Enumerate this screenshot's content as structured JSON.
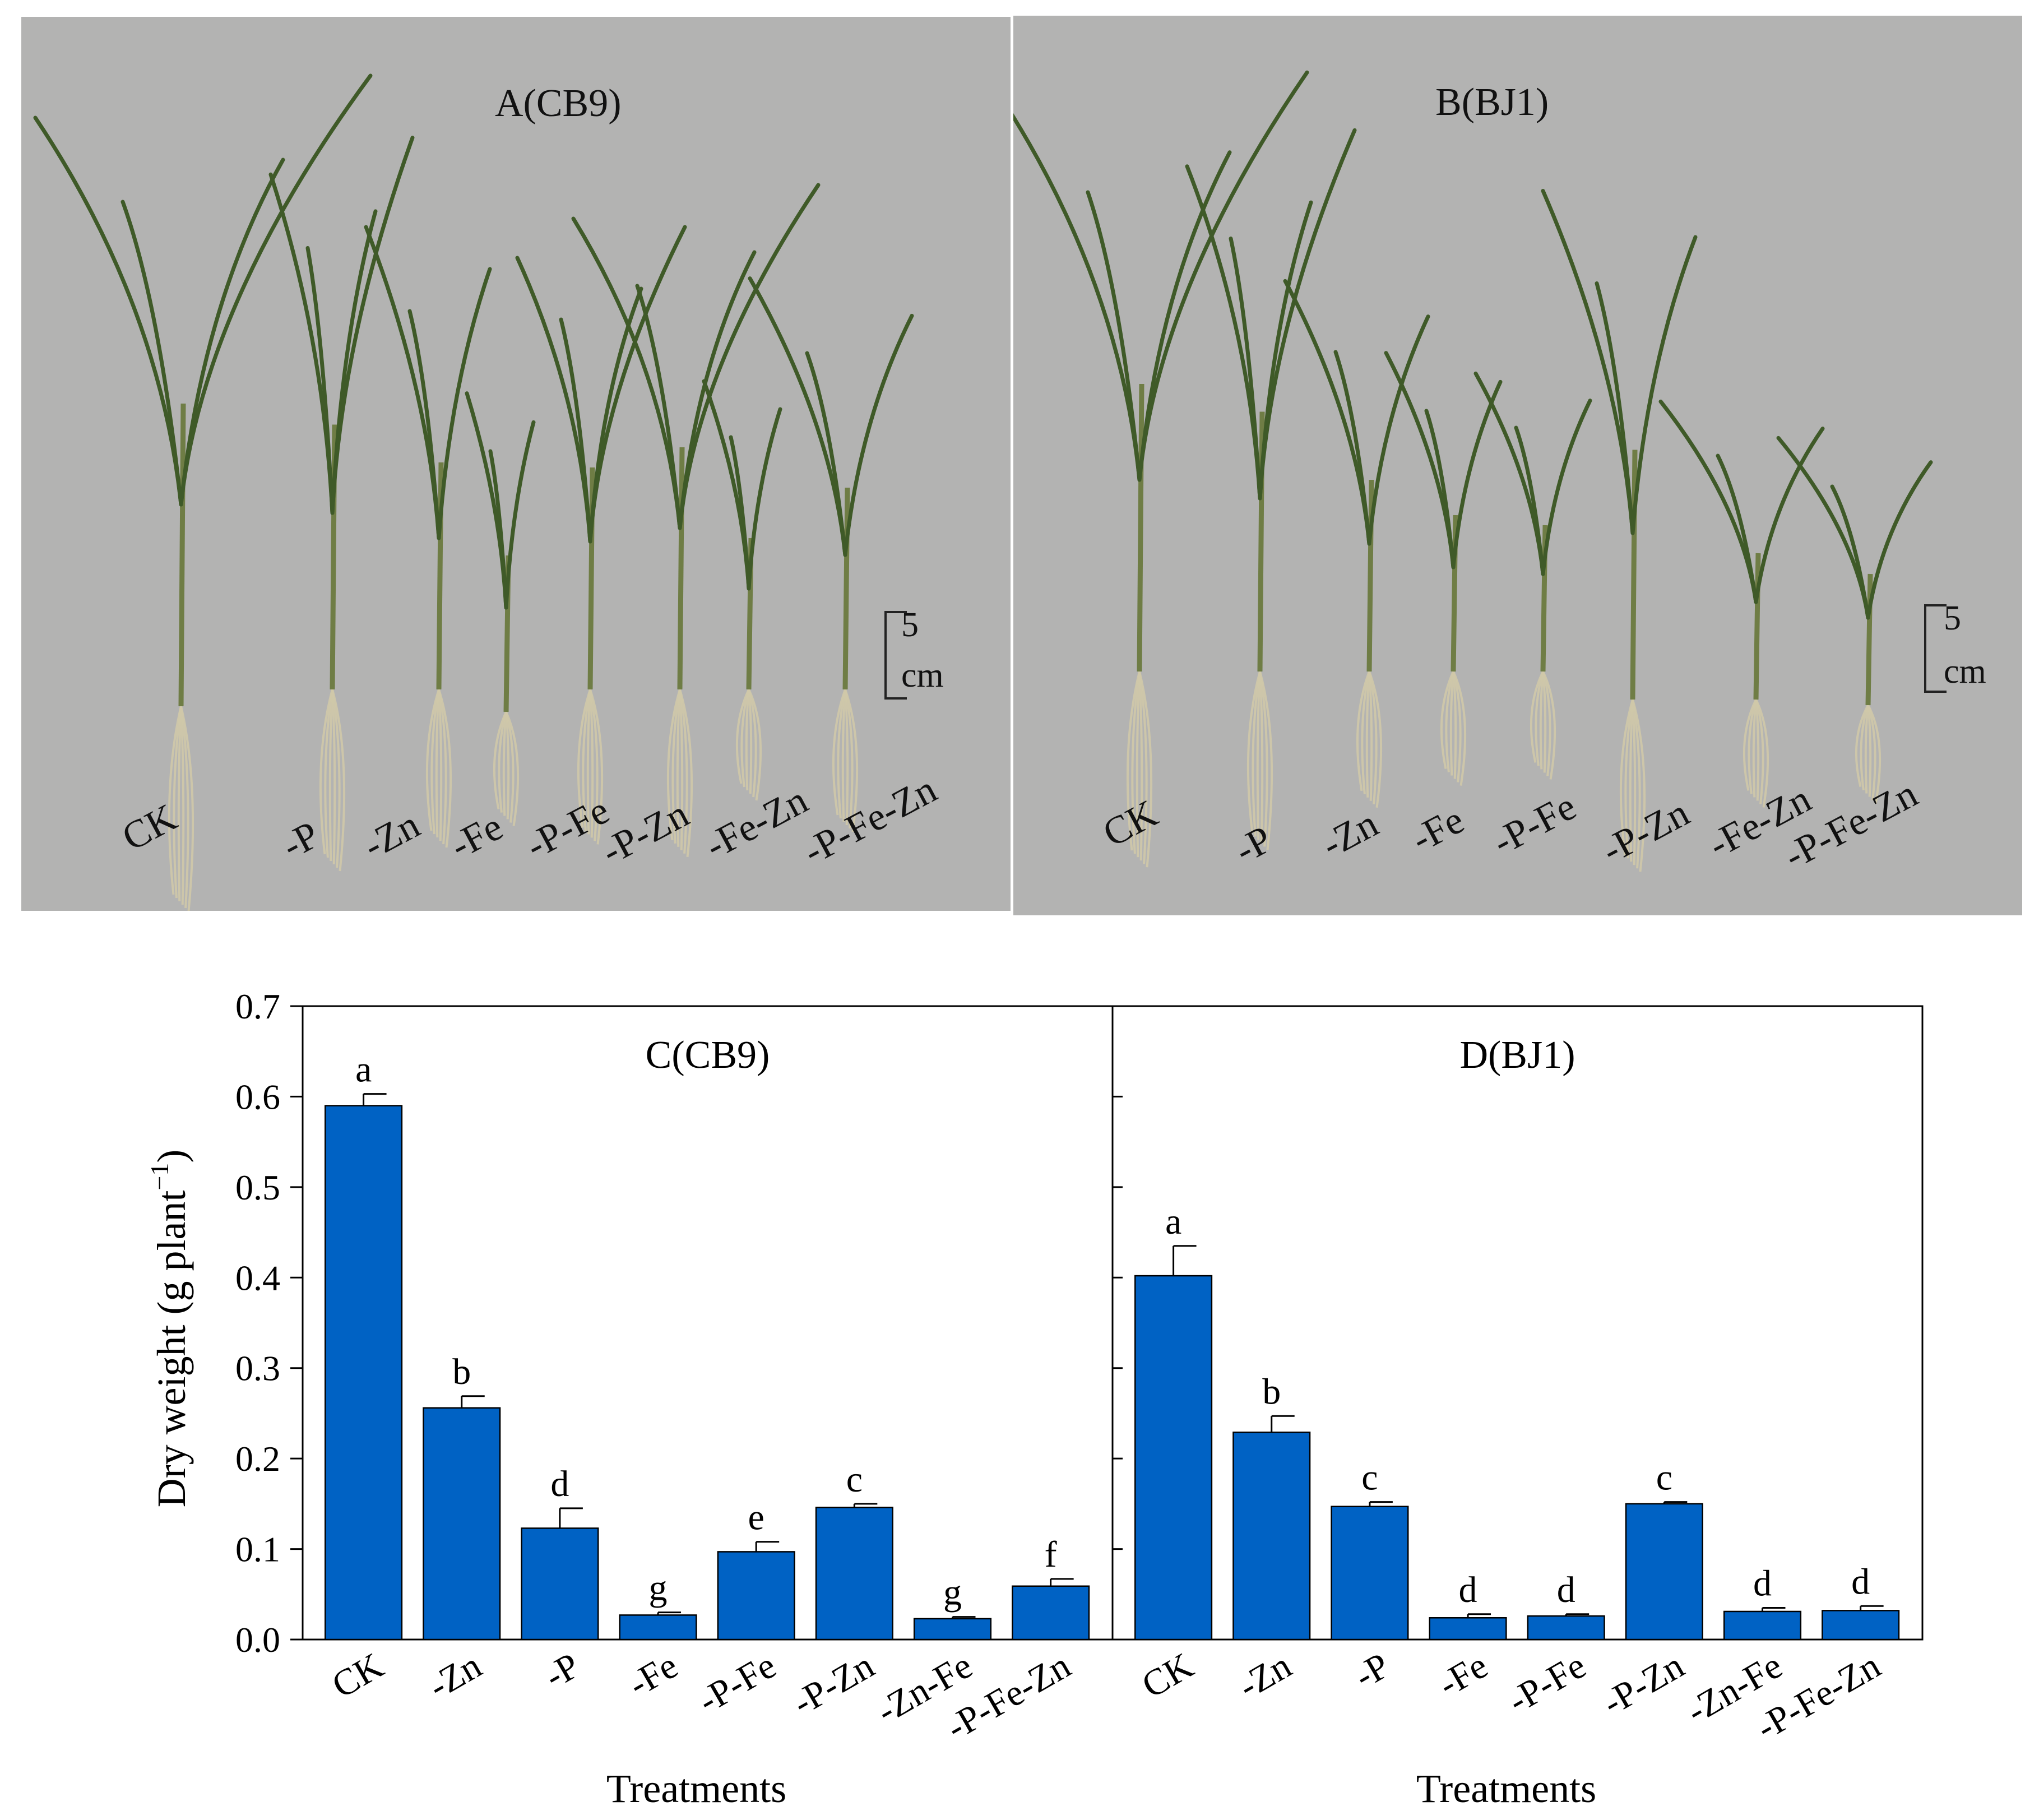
{
  "photos": [
    {
      "title": "A(CB9)",
      "labels": [
        "CK",
        "-P",
        "-Zn",
        "-Fe",
        "-P-Fe",
        "-P-Zn",
        "-Fe-Zn",
        "-P-Fe-Zn"
      ],
      "scale_value": "5",
      "scale_unit": "cm"
    },
    {
      "title": "B(BJ1)",
      "labels": [
        "CK",
        "-P",
        "-Zn",
        "-Fe",
        "-P-Fe",
        "-P-Zn",
        "-Fe-Zn",
        "-P-Fe-Zn"
      ],
      "scale_value": "5",
      "scale_unit": "cm"
    }
  ],
  "colors": {
    "bar": "#0062c4",
    "photo_bg": "#b3b3b2",
    "leaf": "#3f5a28"
  },
  "chart_data": {
    "type": "bar",
    "ylabel_main": "Dry weight (g plant",
    "ylabel_sup": "−1",
    "ylabel_close": ")",
    "ylim": [
      0,
      0.7
    ],
    "yticks": [
      "0.0",
      "0.1",
      "0.2",
      "0.3",
      "0.4",
      "0.5",
      "0.6",
      "0.7"
    ],
    "panels": [
      {
        "title": "C(CB9)",
        "xlabel": "Treatments",
        "categories": [
          "CK",
          "-Zn",
          "-P",
          "-Fe",
          "-P-Fe",
          "-P-Zn",
          "-Zn-Fe",
          "-P-Fe-Zn"
        ],
        "values": [
          0.59,
          0.256,
          0.123,
          0.027,
          0.097,
          0.146,
          0.023,
          0.059
        ],
        "errors": [
          0.013,
          0.013,
          0.022,
          0.003,
          0.011,
          0.004,
          0.002,
          0.008
        ],
        "letters": [
          "a",
          "b",
          "d",
          "g",
          "e",
          "c",
          "g",
          "f"
        ]
      },
      {
        "title": "D(BJ1)",
        "xlabel": "Treatments",
        "categories": [
          "CK",
          "-Zn",
          "-P",
          "-Fe",
          "-P-Fe",
          "-P-Zn",
          "-Zn-Fe",
          "-P-Fe-Zn"
        ],
        "values": [
          0.402,
          0.229,
          0.147,
          0.024,
          0.026,
          0.15,
          0.031,
          0.032
        ],
        "errors": [
          0.033,
          0.018,
          0.005,
          0.004,
          0.002,
          0.002,
          0.004,
          0.005
        ],
        "letters": [
          "a",
          "b",
          "c",
          "d",
          "d",
          "c",
          "d",
          "d"
        ]
      }
    ]
  }
}
